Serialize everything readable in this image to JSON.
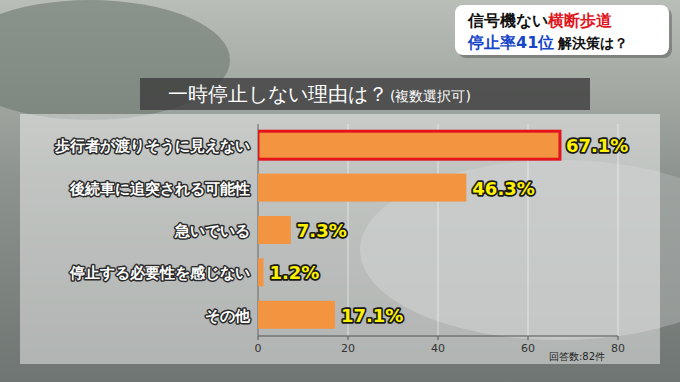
{
  "chart_data": {
    "type": "bar",
    "orientation": "horizontal",
    "title": "一時停止しない理由は？",
    "subtitle": "(複数選択可)",
    "categories": [
      "歩行者が渡りそうに見えない",
      "後続車に追突される可能性",
      "急いでいる",
      "停止する必要性を感じない",
      "その他"
    ],
    "values": [
      67.1,
      46.3,
      7.3,
      1.2,
      17.1
    ],
    "value_labels": [
      "67.1%",
      "46.3%",
      "7.3%",
      "1.2%",
      "17.1%"
    ],
    "color": "#f39441",
    "xlim": [
      0,
      80
    ],
    "xticks": [
      0,
      20,
      40,
      60,
      80
    ],
    "grid": true,
    "data_labels": true,
    "annotations": [
      "信号機ない",
      "横断歩道",
      "停止率41位",
      "解決策は？",
      "回答数:82件"
    ]
  }
}
